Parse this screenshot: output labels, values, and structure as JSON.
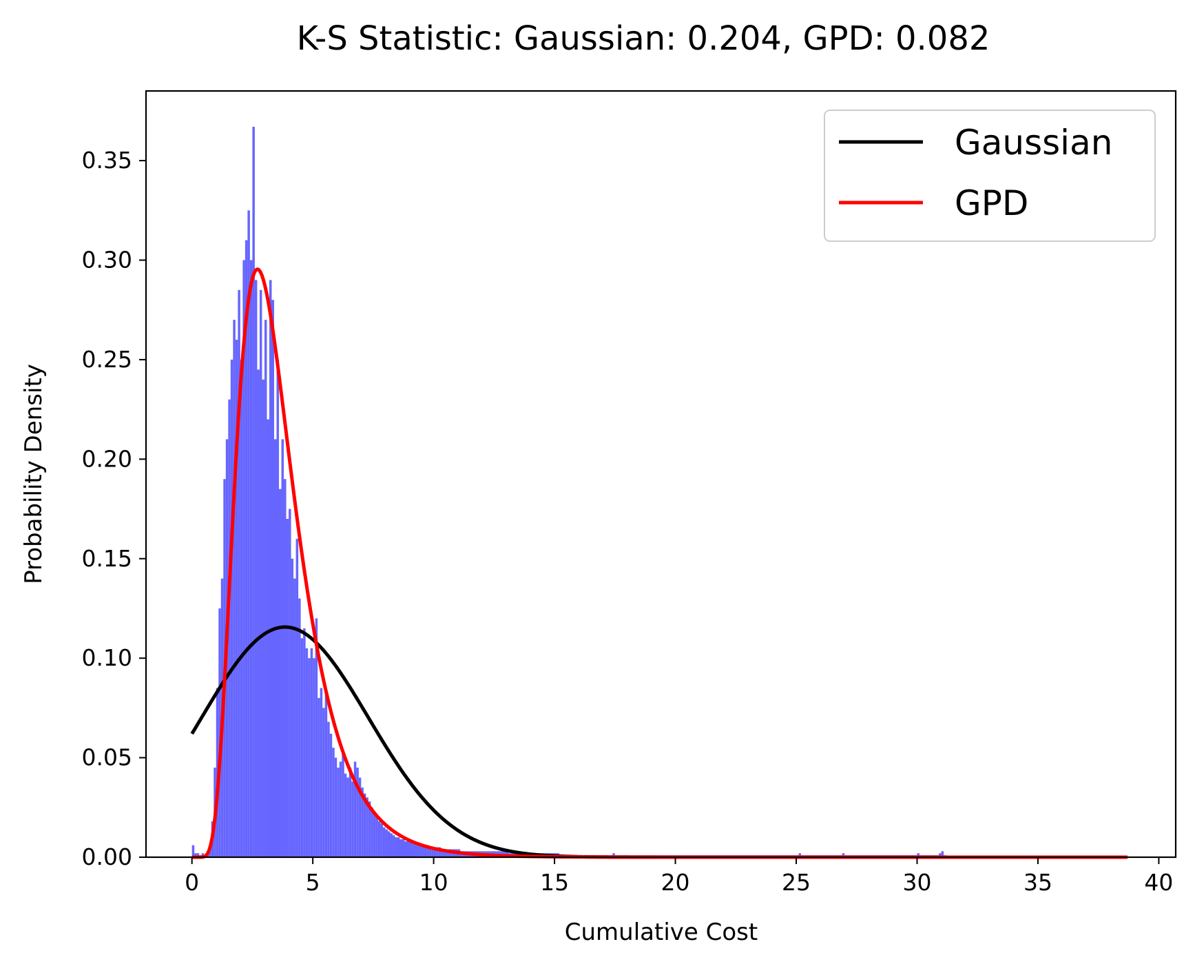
{
  "chart_data": {
    "type": "bar",
    "title": "K-S Statistic: Gaussian: 0.204, GPD: 0.082",
    "xlabel": "Cumulative Cost",
    "ylabel": "Probability Density",
    "xlim": [
      -1.9,
      40.7
    ],
    "ylim": [
      0,
      0.385
    ],
    "xticks": [
      0,
      5,
      10,
      15,
      20,
      25,
      30,
      35,
      40
    ],
    "xtick_labels": [
      "0",
      "5",
      "10",
      "15",
      "20",
      "25",
      "30",
      "35",
      "40"
    ],
    "yticks": [
      0.0,
      0.05,
      0.1,
      0.15,
      0.2,
      0.25,
      0.3,
      0.35
    ],
    "ytick_labels": [
      "0.00",
      "0.05",
      "0.10",
      "0.15",
      "0.20",
      "0.25",
      "0.30",
      "0.35"
    ],
    "grid": false,
    "legend_position": "top-right",
    "histogram": {
      "name": "Histogram",
      "color": "#6666ff",
      "bin_width": 0.1,
      "bins": [
        [
          0.0,
          0.006
        ],
        [
          0.1,
          0.002
        ],
        [
          0.2,
          0.002
        ],
        [
          0.3,
          0.001
        ],
        [
          0.4,
          0.002
        ],
        [
          0.5,
          0.001
        ],
        [
          0.6,
          0.002
        ],
        [
          0.7,
          0.005
        ],
        [
          0.8,
          0.018
        ],
        [
          0.9,
          0.045
        ],
        [
          1.0,
          0.085
        ],
        [
          1.1,
          0.125
        ],
        [
          1.2,
          0.14
        ],
        [
          1.3,
          0.19
        ],
        [
          1.4,
          0.21
        ],
        [
          1.5,
          0.23
        ],
        [
          1.6,
          0.25
        ],
        [
          1.7,
          0.27
        ],
        [
          1.8,
          0.26
        ],
        [
          1.9,
          0.285
        ],
        [
          2.0,
          0.25
        ],
        [
          2.1,
          0.3
        ],
        [
          2.2,
          0.31
        ],
        [
          2.3,
          0.325
        ],
        [
          2.4,
          0.3
        ],
        [
          2.5,
          0.367
        ],
        [
          2.6,
          0.29
        ],
        [
          2.7,
          0.245
        ],
        [
          2.8,
          0.285
        ],
        [
          2.9,
          0.24
        ],
        [
          3.0,
          0.27
        ],
        [
          3.1,
          0.22
        ],
        [
          3.2,
          0.29
        ],
        [
          3.3,
          0.28
        ],
        [
          3.4,
          0.21
        ],
        [
          3.5,
          0.25
        ],
        [
          3.6,
          0.185
        ],
        [
          3.7,
          0.21
        ],
        [
          3.8,
          0.19
        ],
        [
          3.9,
          0.17
        ],
        [
          4.0,
          0.175
        ],
        [
          4.1,
          0.15
        ],
        [
          4.2,
          0.14
        ],
        [
          4.3,
          0.16
        ],
        [
          4.4,
          0.13
        ],
        [
          4.5,
          0.11
        ],
        [
          4.6,
          0.115
        ],
        [
          4.7,
          0.105
        ],
        [
          4.8,
          0.1
        ],
        [
          4.9,
          0.105
        ],
        [
          5.0,
          0.1
        ],
        [
          5.1,
          0.12
        ],
        [
          5.2,
          0.08
        ],
        [
          5.3,
          0.085
        ],
        [
          5.4,
          0.075
        ],
        [
          5.5,
          0.082
        ],
        [
          5.6,
          0.068
        ],
        [
          5.7,
          0.062
        ],
        [
          5.8,
          0.055
        ],
        [
          5.9,
          0.05
        ],
        [
          6.0,
          0.045
        ],
        [
          6.1,
          0.048
        ],
        [
          6.2,
          0.052
        ],
        [
          6.3,
          0.042
        ],
        [
          6.4,
          0.04
        ],
        [
          6.5,
          0.045
        ],
        [
          6.6,
          0.038
        ],
        [
          6.7,
          0.048
        ],
        [
          6.8,
          0.045
        ],
        [
          6.9,
          0.04
        ],
        [
          7.0,
          0.035
        ],
        [
          7.1,
          0.032
        ],
        [
          7.2,
          0.03
        ],
        [
          7.3,
          0.028
        ],
        [
          7.4,
          0.025
        ],
        [
          7.5,
          0.022
        ],
        [
          7.6,
          0.02
        ],
        [
          7.7,
          0.018
        ],
        [
          7.8,
          0.017
        ],
        [
          7.9,
          0.015
        ],
        [
          8.0,
          0.014
        ],
        [
          8.1,
          0.013
        ],
        [
          8.2,
          0.012
        ],
        [
          8.3,
          0.011
        ],
        [
          8.4,
          0.01
        ],
        [
          8.5,
          0.01
        ],
        [
          8.6,
          0.009
        ],
        [
          8.7,
          0.009
        ],
        [
          8.8,
          0.008
        ],
        [
          8.9,
          0.008
        ],
        [
          9.0,
          0.008
        ],
        [
          9.1,
          0.007
        ],
        [
          9.2,
          0.007
        ],
        [
          9.3,
          0.007
        ],
        [
          9.4,
          0.006
        ],
        [
          9.5,
          0.006
        ],
        [
          9.6,
          0.006
        ],
        [
          9.7,
          0.006
        ],
        [
          9.8,
          0.005
        ],
        [
          9.9,
          0.005
        ],
        [
          10.0,
          0.005
        ],
        [
          10.1,
          0.005
        ],
        [
          10.2,
          0.005
        ],
        [
          10.3,
          0.004
        ],
        [
          10.4,
          0.004
        ],
        [
          10.5,
          0.004
        ],
        [
          10.6,
          0.004
        ],
        [
          10.7,
          0.004
        ],
        [
          10.8,
          0.004
        ],
        [
          10.9,
          0.004
        ],
        [
          11.0,
          0.004
        ],
        [
          11.1,
          0.003
        ],
        [
          11.2,
          0.003
        ],
        [
          11.3,
          0.003
        ],
        [
          11.4,
          0.003
        ],
        [
          11.5,
          0.003
        ],
        [
          11.6,
          0.003
        ],
        [
          11.7,
          0.003
        ],
        [
          11.8,
          0.003
        ],
        [
          11.9,
          0.003
        ],
        [
          12.0,
          0.003
        ],
        [
          12.1,
          0.003
        ],
        [
          12.2,
          0.003
        ],
        [
          12.3,
          0.003
        ],
        [
          12.4,
          0.003
        ],
        [
          12.5,
          0.003
        ],
        [
          12.6,
          0.003
        ],
        [
          12.7,
          0.003
        ],
        [
          12.8,
          0.003
        ],
        [
          12.9,
          0.003
        ],
        [
          13.0,
          0.003
        ],
        [
          13.1,
          0.002
        ],
        [
          13.2,
          0.002
        ],
        [
          13.3,
          0.002
        ],
        [
          13.4,
          0.002
        ],
        [
          13.5,
          0.002
        ],
        [
          13.6,
          0.002
        ],
        [
          13.7,
          0.002
        ],
        [
          13.8,
          0.002
        ],
        [
          13.9,
          0.002
        ],
        [
          14.0,
          0.002
        ],
        [
          14.1,
          0.002
        ],
        [
          14.2,
          0.002
        ],
        [
          14.3,
          0.002
        ],
        [
          14.4,
          0.002
        ],
        [
          14.5,
          0.002
        ],
        [
          14.6,
          0.002
        ],
        [
          14.7,
          0.002
        ],
        [
          14.8,
          0.002
        ],
        [
          14.9,
          0.002
        ],
        [
          15.0,
          0.002
        ],
        [
          15.1,
          0.002
        ],
        [
          15.2,
          0.001
        ],
        [
          15.3,
          0.001
        ],
        [
          15.4,
          0.001
        ],
        [
          15.5,
          0.001
        ],
        [
          15.6,
          0.001
        ],
        [
          15.7,
          0.001
        ],
        [
          15.8,
          0.001
        ],
        [
          15.9,
          0.001
        ],
        [
          16.0,
          0.001
        ],
        [
          16.1,
          0.001
        ],
        [
          16.2,
          0.001
        ],
        [
          16.3,
          0.001
        ],
        [
          16.4,
          0.001
        ],
        [
          16.5,
          0.001
        ],
        [
          16.6,
          0.001
        ],
        [
          16.7,
          0.001
        ],
        [
          16.8,
          0.001
        ],
        [
          16.9,
          0.001
        ],
        [
          17.0,
          0.001
        ],
        [
          17.1,
          0.001
        ],
        [
          17.2,
          0.001
        ],
        [
          17.3,
          0.001
        ],
        [
          17.4,
          0.002
        ],
        [
          17.5,
          0.001
        ],
        [
          17.6,
          0.001
        ],
        [
          17.7,
          0.001
        ],
        [
          17.8,
          0.001
        ],
        [
          17.9,
          0.001
        ],
        [
          18.0,
          0.001
        ],
        [
          18.1,
          0.001
        ],
        [
          18.2,
          0.001
        ],
        [
          18.3,
          0.001
        ],
        [
          18.4,
          0.001
        ],
        [
          18.5,
          0.001
        ],
        [
          18.6,
          0.001
        ],
        [
          18.7,
          0.001
        ],
        [
          18.8,
          0.001
        ],
        [
          18.9,
          0.001
        ],
        [
          19.0,
          0.001
        ],
        [
          19.1,
          0.001
        ],
        [
          19.2,
          0.001
        ],
        [
          19.3,
          0.001
        ],
        [
          19.4,
          0.001
        ],
        [
          19.5,
          0.001
        ],
        [
          19.6,
          0.001
        ],
        [
          19.7,
          0.001
        ],
        [
          19.8,
          0.001
        ],
        [
          19.9,
          0.001
        ],
        [
          20.0,
          0.001
        ],
        [
          20.1,
          0.001
        ],
        [
          20.2,
          0.001
        ],
        [
          20.3,
          0.001
        ],
        [
          20.4,
          0.001
        ],
        [
          20.5,
          0.001
        ],
        [
          20.6,
          0.001
        ],
        [
          20.7,
          0.001
        ],
        [
          20.8,
          0.001
        ],
        [
          20.9,
          0.001
        ],
        [
          21.0,
          0.001
        ],
        [
          21.1,
          0.001
        ],
        [
          21.2,
          0.001
        ],
        [
          21.3,
          0.001
        ],
        [
          21.4,
          0.001
        ],
        [
          21.5,
          0.001
        ],
        [
          21.6,
          0.001
        ],
        [
          21.7,
          0.001
        ],
        [
          21.8,
          0.001
        ],
        [
          21.9,
          0.001
        ],
        [
          22.0,
          0.001
        ],
        [
          22.1,
          0.001
        ],
        [
          22.2,
          0.001
        ],
        [
          22.3,
          0.001
        ],
        [
          22.4,
          0.001
        ],
        [
          22.5,
          0.001
        ],
        [
          22.6,
          0.001
        ],
        [
          22.7,
          0.001
        ],
        [
          22.8,
          0.001
        ],
        [
          22.9,
          0.001
        ],
        [
          23.0,
          0.001
        ],
        [
          23.1,
          0.001
        ],
        [
          23.2,
          0.001
        ],
        [
          23.3,
          0.001
        ],
        [
          23.4,
          0.001
        ],
        [
          23.5,
          0.001
        ],
        [
          23.6,
          0.001
        ],
        [
          23.7,
          0.001
        ],
        [
          23.8,
          0.001
        ],
        [
          23.9,
          0.001
        ],
        [
          24.0,
          0.001
        ],
        [
          24.1,
          0.001
        ],
        [
          24.2,
          0.001
        ],
        [
          24.3,
          0.001
        ],
        [
          24.4,
          0.001
        ],
        [
          24.5,
          0.001
        ],
        [
          24.6,
          0.001
        ],
        [
          24.7,
          0.001
        ],
        [
          24.8,
          0.001
        ],
        [
          24.9,
          0.001
        ],
        [
          25.0,
          0.001
        ],
        [
          25.1,
          0.002
        ],
        [
          25.2,
          0.001
        ],
        [
          25.3,
          0.001
        ],
        [
          25.4,
          0.001
        ],
        [
          25.5,
          0.001
        ],
        [
          25.6,
          0.001
        ],
        [
          25.7,
          0.001
        ],
        [
          25.8,
          0.001
        ],
        [
          25.9,
          0.001
        ],
        [
          26.0,
          0.001
        ],
        [
          26.1,
          0.001
        ],
        [
          26.2,
          0.001
        ],
        [
          26.3,
          0.001
        ],
        [
          26.4,
          0.001
        ],
        [
          26.5,
          0.001
        ],
        [
          26.6,
          0.001
        ],
        [
          26.7,
          0.001
        ],
        [
          26.8,
          0.001
        ],
        [
          26.9,
          0.002
        ],
        [
          27.0,
          0.001
        ],
        [
          27.1,
          0.001
        ],
        [
          27.2,
          0.001
        ],
        [
          27.3,
          0.001
        ],
        [
          27.4,
          0.001
        ],
        [
          27.5,
          0.001
        ],
        [
          27.6,
          0.001
        ],
        [
          27.7,
          0.001
        ],
        [
          27.8,
          0.001
        ],
        [
          27.9,
          0.001
        ],
        [
          28.0,
          0.001
        ],
        [
          28.1,
          0.001
        ],
        [
          28.2,
          0.001
        ],
        [
          28.3,
          0.001
        ],
        [
          28.4,
          0.001
        ],
        [
          28.5,
          0.001
        ],
        [
          28.6,
          0.001
        ],
        [
          28.7,
          0.001
        ],
        [
          28.8,
          0.001
        ],
        [
          28.9,
          0.001
        ],
        [
          29.0,
          0.001
        ],
        [
          29.1,
          0.001
        ],
        [
          29.2,
          0.001
        ],
        [
          29.3,
          0.001
        ],
        [
          29.4,
          0.001
        ],
        [
          29.5,
          0.001
        ],
        [
          29.6,
          0.001
        ],
        [
          29.7,
          0.001
        ],
        [
          29.8,
          0.001
        ],
        [
          29.9,
          0.001
        ],
        [
          30.0,
          0.002
        ],
        [
          30.1,
          0.001
        ],
        [
          30.2,
          0.001
        ],
        [
          30.3,
          0.001
        ],
        [
          30.4,
          0.001
        ],
        [
          30.5,
          0.001
        ],
        [
          30.6,
          0.001
        ],
        [
          30.7,
          0.001
        ],
        [
          30.8,
          0.001
        ],
        [
          30.9,
          0.002
        ],
        [
          31.0,
          0.003
        ],
        [
          31.1,
          0.001
        ]
      ]
    },
    "series": [
      {
        "name": "Gaussian",
        "type": "line",
        "color": "#000000",
        "function": "normal",
        "mu": 3.85,
        "sigma": 3.45,
        "x_range": [
          0,
          38.7
        ]
      },
      {
        "name": "GPD",
        "type": "line",
        "color": "#ff0000",
        "function": "lognormal",
        "mu": 1.2,
        "sigma": 0.45,
        "x_range": [
          0,
          38.7
        ]
      }
    ]
  }
}
